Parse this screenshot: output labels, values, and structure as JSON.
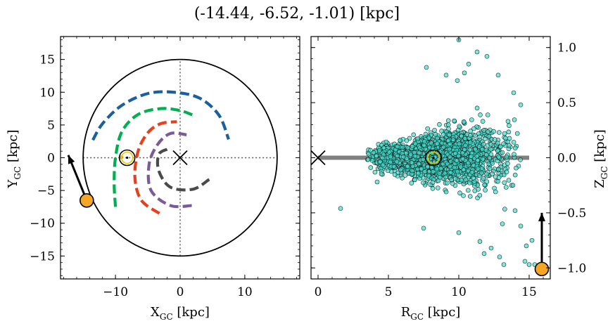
{
  "title": "(-14.44, -6.52, -1.01) [kpc]",
  "chart_data": [
    {
      "type": "scatter",
      "panel": "left",
      "xlabel": "X",
      "xlabel_sub": "GC",
      "xlabel_unit": " [kpc]",
      "ylabel": "Y",
      "ylabel_sub": "GC",
      "ylabel_unit": " [kpc]",
      "xlim": [
        -18.5,
        18.5
      ],
      "ylim": [
        -18.5,
        18.5
      ],
      "xticks": [
        -10,
        0,
        10
      ],
      "xtick_labels": [
        "−10",
        "0",
        "10"
      ],
      "yticks": [
        -15,
        -10,
        -5,
        0,
        5,
        10,
        15
      ],
      "ytick_labels": [
        "−15",
        "−10",
        "−5",
        "0",
        "5",
        "10",
        "15"
      ],
      "grid": false,
      "boundary_circle_radius": 15,
      "galactic_center": [
        0,
        0
      ],
      "sun_position": [
        -8.2,
        0
      ],
      "object_position": [
        -14.44,
        -6.52
      ],
      "object_velocity_arrow_end": [
        -17.3,
        0.4
      ],
      "spiral_arms": [
        {
          "color": "#1a5fa0",
          "points": [
            [
              -13.5,
              2.7
            ],
            [
              -12,
              5.2
            ],
            [
              -9,
              8
            ],
            [
              -5,
              9.8
            ],
            [
              -1,
              10
            ],
            [
              3,
              9.1
            ],
            [
              6,
              6.5
            ],
            [
              7.5,
              2.8
            ]
          ]
        },
        {
          "color": "#f0a030",
          "points": [
            [
              -9,
              0.3
            ],
            [
              -9.2,
              -0.2
            ]
          ]
        },
        {
          "color": "#00b050",
          "points": [
            [
              -10,
              -7.5
            ],
            [
              -10.2,
              -4
            ],
            [
              -10,
              0
            ],
            [
              -9,
              4
            ],
            [
              -6.5,
              6.6
            ],
            [
              -3,
              7.5
            ],
            [
              0,
              7.2
            ],
            [
              2,
              6.5
            ]
          ]
        },
        {
          "color": "#e8401c",
          "points": [
            [
              -3.2,
              -8.5
            ],
            [
              -6,
              -6.5
            ],
            [
              -7,
              -3
            ],
            [
              -6.5,
              1
            ],
            [
              -5,
              3.8
            ],
            [
              -3,
              5.2
            ],
            [
              -0.5,
              5.5
            ]
          ]
        },
        {
          "color": "#7b5a9b",
          "points": [
            [
              1.8,
              -7.3
            ],
            [
              -1.5,
              -7.3
            ],
            [
              -4.5,
              -5
            ],
            [
              -4.8,
              -1
            ],
            [
              -3.5,
              2
            ],
            [
              -1.5,
              3.7
            ],
            [
              1,
              3.5
            ]
          ]
        },
        {
          "color": "#4a4a4a",
          "points": [
            [
              4.5,
              -3.3
            ],
            [
              2,
              -4.8
            ],
            [
              -1.5,
              -4.5
            ],
            [
              -3.3,
              -2
            ],
            [
              -3.3,
              0.5
            ],
            [
              -2,
              1.3
            ]
          ]
        }
      ]
    },
    {
      "type": "scatter",
      "panel": "right",
      "xlabel": "R",
      "xlabel_sub": "GC",
      "xlabel_unit": " [kpc]",
      "ylabel": "Z",
      "ylabel_sub": "GC",
      "ylabel_unit": " [kpc]",
      "xlim": [
        -0.5,
        16.5
      ],
      "ylim": [
        -1.1,
        1.1
      ],
      "xticks": [
        0,
        5,
        10,
        15
      ],
      "xtick_labels": [
        "0",
        "5",
        "10",
        "15"
      ],
      "yticks": [
        -1.0,
        -0.5,
        0.0,
        0.5,
        1.0
      ],
      "ytick_labels": [
        "−1.0",
        "−0.5",
        "0.0",
        "0.5",
        "1.0"
      ],
      "grid": false,
      "disk_line": {
        "x": [
          0,
          15
        ],
        "y": 0
      },
      "galactic_center": [
        0,
        0
      ],
      "sun_position": [
        8.2,
        0
      ],
      "object_position": [
        15.9,
        -1.01
      ],
      "object_velocity_arrow_end": [
        15.9,
        -0.5
      ],
      "point_color": "#40e0d0",
      "n_points": 2000,
      "cloud_center": [
        8.5,
        0.0
      ],
      "cloud_spread": [
        2.2,
        0.11
      ],
      "outlier_points": [
        [
          10.0,
          1.07
        ],
        [
          11.3,
          0.96
        ],
        [
          12.0,
          0.92
        ],
        [
          10.7,
          0.85
        ],
        [
          7.7,
          0.82
        ],
        [
          10.4,
          0.77
        ],
        [
          9.1,
          0.75
        ],
        [
          9.9,
          0.7
        ],
        [
          12.8,
          0.75
        ],
        [
          13.9,
          0.59
        ],
        [
          14.4,
          0.48
        ],
        [
          13.5,
          0.33
        ],
        [
          1.6,
          -0.46
        ],
        [
          4.2,
          -0.22
        ],
        [
          14.0,
          -0.48
        ],
        [
          14.4,
          -0.62
        ],
        [
          13.1,
          -0.6
        ],
        [
          12.3,
          -0.82
        ],
        [
          11.8,
          -0.87
        ],
        [
          13.2,
          -0.97
        ],
        [
          14.7,
          -0.94
        ],
        [
          15.4,
          -0.97
        ],
        [
          14.8,
          -0.8
        ],
        [
          7.5,
          -0.64
        ],
        [
          10.0,
          -0.68
        ],
        [
          11.5,
          -0.76
        ],
        [
          12.9,
          -0.9
        ],
        [
          15.2,
          -0.75
        ],
        [
          15.0,
          -0.97
        ]
      ]
    }
  ]
}
